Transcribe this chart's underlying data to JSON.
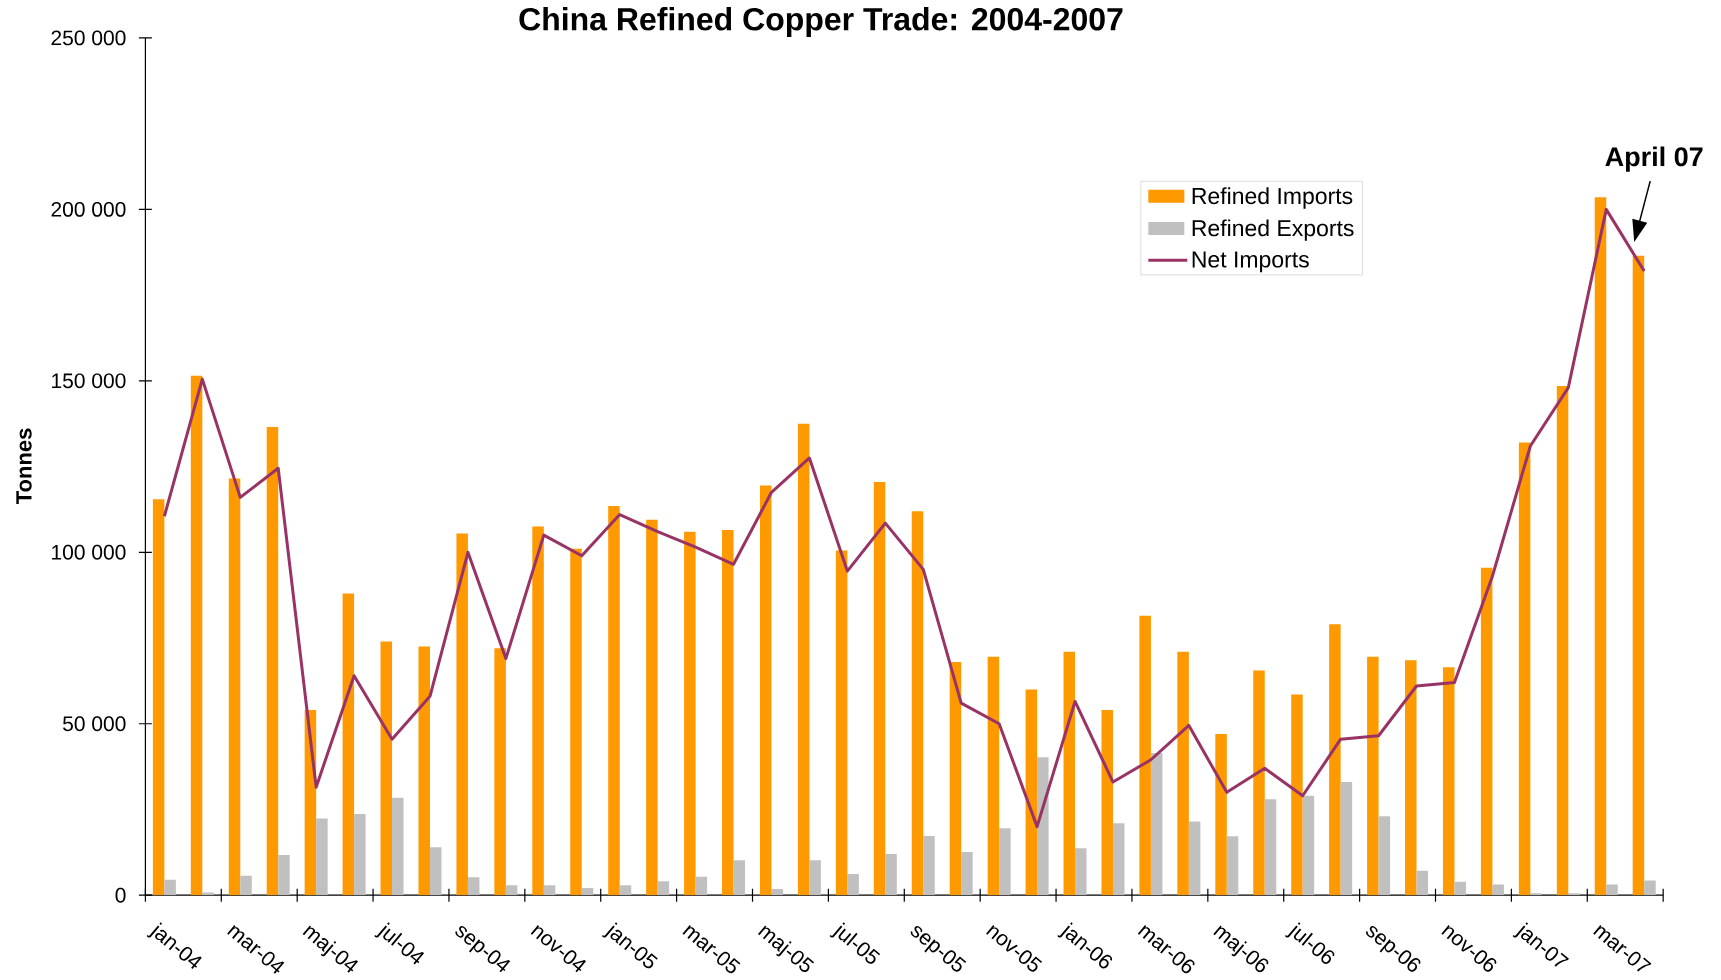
{
  "chart_data": {
    "type": "bar",
    "title": "China Refined Copper Trade: 2004-2007",
    "ylabel": "Tonnes",
    "categories": [
      "jan-04",
      null,
      "mar-04",
      null,
      "maj-04",
      null,
      "jul-04",
      null,
      "sep-04",
      null,
      "nov-04",
      null,
      "jan-05",
      null,
      "mar-05",
      null,
      "maj-05",
      null,
      "jul-05",
      null,
      "sep-05",
      null,
      "nov-05",
      null,
      "jan-06",
      null,
      "mar-06",
      null,
      "maj-06",
      null,
      "jul-06",
      null,
      "sep-06",
      null,
      "nov-06",
      null,
      "jan-07",
      null,
      "mar-07",
      null
    ],
    "series": [
      {
        "name": "Refined Imports",
        "color": "#ff9900",
        "values": [
          115500,
          151500,
          121500,
          136500,
          54000,
          88000,
          74000,
          72500,
          105500,
          72000,
          107500,
          101000,
          113500,
          109500,
          106000,
          106500,
          119500,
          137500,
          100500,
          120500,
          112000,
          68000,
          69500,
          60000,
          71000,
          54000,
          81500,
          71000,
          47000,
          65500,
          58500,
          79000,
          69500,
          68500,
          66500,
          95500,
          132000,
          148500,
          203500,
          186500
        ]
      },
      {
        "name": "Refined Exports",
        "color": "#c0c0c0",
        "values": [
          4500,
          800,
          5700,
          11700,
          22400,
          23700,
          28400,
          14000,
          5200,
          2900,
          2900,
          2100,
          2900,
          4100,
          5400,
          10200,
          1800,
          10200,
          6200,
          12000,
          17300,
          12600,
          19500,
          40200,
          13700,
          21000,
          41500,
          21500,
          17200,
          28000,
          29000,
          33000,
          23000,
          7100,
          3900,
          3100,
          600,
          600,
          3100,
          4300
        ]
      },
      {
        "name": "Net Imports",
        "type": "line",
        "color": "#993366",
        "values": [
          110500,
          150500,
          116000,
          124500,
          31500,
          64000,
          45500,
          58000,
          100000,
          69000,
          105000,
          99000,
          111000,
          106000,
          101500,
          96500,
          117500,
          127500,
          94500,
          108500,
          95000,
          56000,
          50000,
          20000,
          56500,
          33000,
          39500,
          49500,
          30000,
          37000,
          29000,
          45500,
          46500,
          61000,
          62000,
          93000,
          131000,
          148000,
          200000,
          182000
        ]
      }
    ],
    "ylim": [
      0,
      250000
    ],
    "yticks": [
      0,
      {
        "value": 50000,
        "label": "50 000"
      },
      {
        "value": 100000,
        "label": "100 000"
      },
      {
        "value": 150000,
        "label": "150 000"
      },
      {
        "value": 200000,
        "label": "200 000"
      },
      {
        "value": 250000,
        "label": "250 000"
      }
    ],
    "legend": "top right",
    "annotations": [
      "April 07"
    ]
  }
}
